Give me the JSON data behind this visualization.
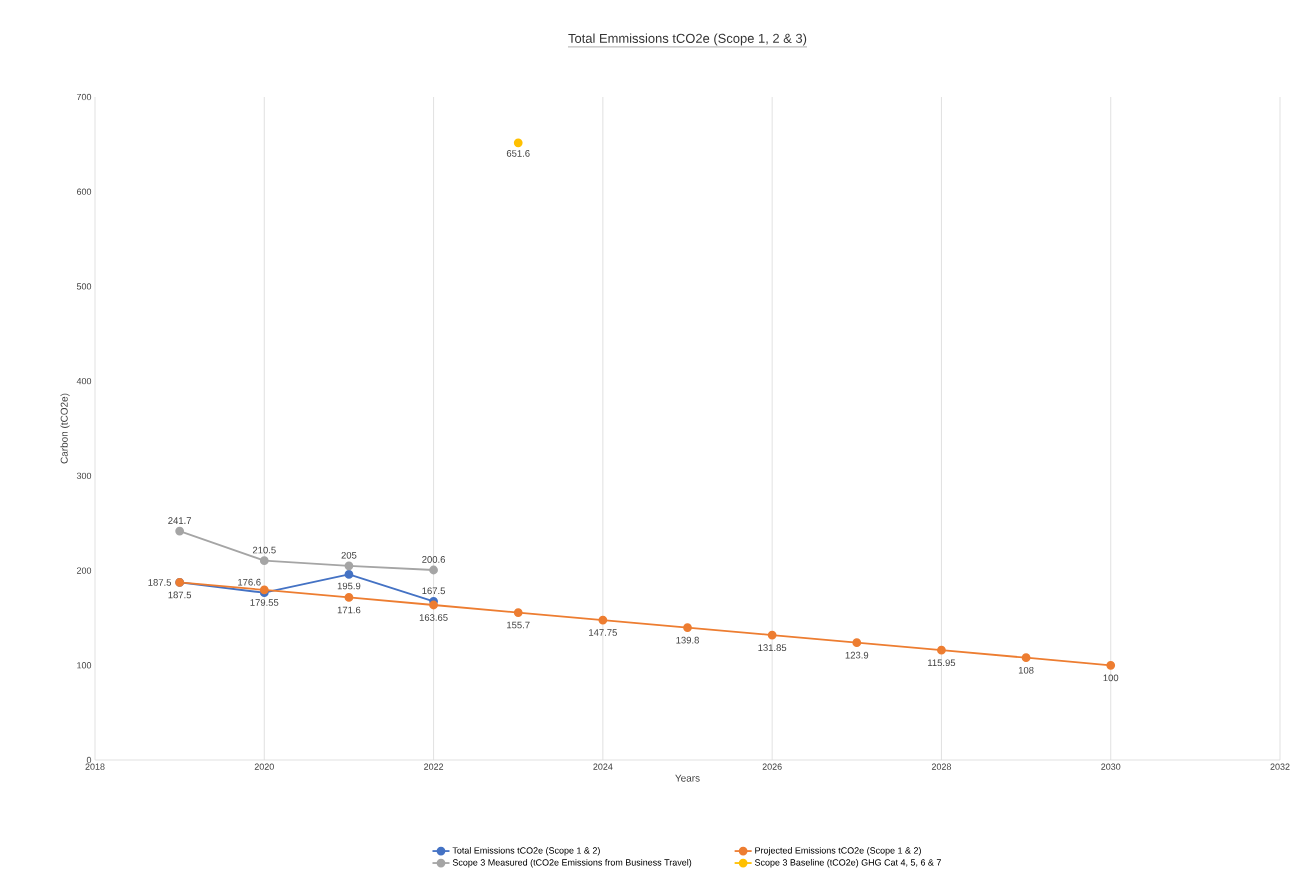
{
  "chart_data": {
    "type": "line",
    "title": "Total Emmissions tCO2e (Scope 1, 2 & 3)",
    "xlabel": "Years",
    "ylabel": "Carbon (tCO2e)",
    "xlim": [
      2018,
      2032
    ],
    "xticks": [
      2018,
      2020,
      2022,
      2024,
      2026,
      2028,
      2030,
      2032
    ],
    "ylim": [
      0,
      700
    ],
    "yticks": [
      0,
      100,
      200,
      300,
      400,
      500,
      600,
      700
    ],
    "grid": "x",
    "legend": "bottom",
    "marker": "circle",
    "data_labels": true,
    "series": [
      {
        "name": "Total Emissions tCO2e (Scope 1 & 2)",
        "color": "#4472c4",
        "x": [
          2019,
          2020,
          2021,
          2022
        ],
        "values": [
          187.5,
          176.6,
          195.9,
          167.5
        ]
      },
      {
        "name": "Projected Emissions tCO2e (Scope 1 & 2)",
        "color": "#ed7d31",
        "x": [
          2019,
          2020,
          2021,
          2022,
          2023,
          2024,
          2025,
          2026,
          2027,
          2028,
          2029,
          2030
        ],
        "values": [
          187.5,
          179.55,
          171.6,
          163.65,
          155.7,
          147.75,
          139.8,
          131.85,
          123.9,
          115.95,
          108,
          100
        ]
      },
      {
        "name": "Scope 3 Measured (tCO2e Emissions from Business Travel)",
        "color": "#a5a5a5",
        "x": [
          2019,
          2020,
          2021,
          2022
        ],
        "values": [
          241.7,
          210.5,
          205,
          200.6
        ]
      },
      {
        "name": "Scope 3 Baseline (tCO2e) GHG Cat 4, 5, 6 & 7",
        "color": "#ffc000",
        "x": [
          2023
        ],
        "values": [
          651.6
        ]
      }
    ]
  }
}
